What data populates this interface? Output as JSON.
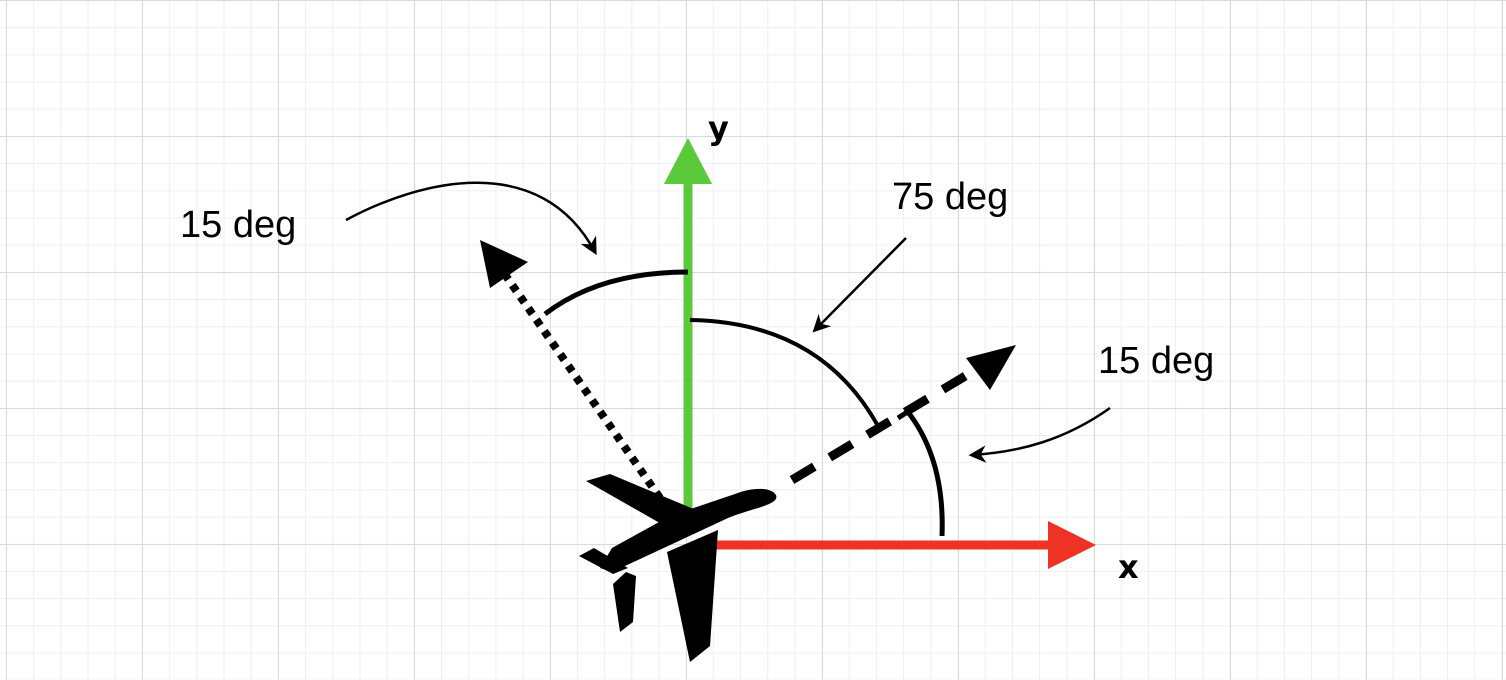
{
  "labels": {
    "y_axis": "y",
    "x_axis": "x",
    "angle_top_left": "15 deg",
    "angle_top": "75 deg",
    "angle_right": "15 deg"
  },
  "colors": {
    "y_axis": "#5cc93b",
    "x_axis": "#ee3224",
    "ink": "#000000",
    "grid": "#d9d9d9"
  },
  "icons": {
    "airplane": "airplane-icon"
  }
}
